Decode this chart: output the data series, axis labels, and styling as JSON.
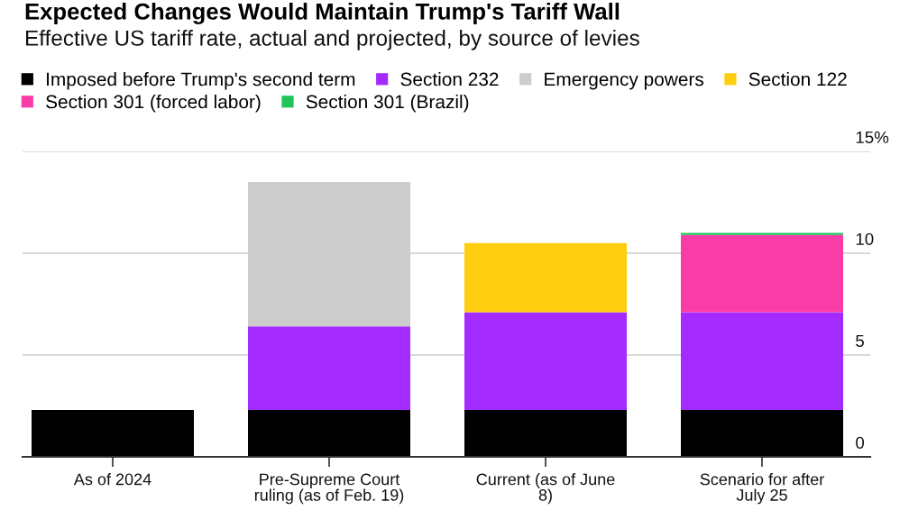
{
  "chart_data": {
    "type": "bar",
    "title": "Expected Changes Would Maintain Trump's Tariff Wall",
    "subtitle": "Effective US tariff rate, actual and projected, by source of levies",
    "categories": [
      "As of 2024",
      "Pre-Supreme Court\nruling (as of Feb. 19)",
      "Current (as of June\n8)",
      "Scenario for after\nJuly 25"
    ],
    "series": [
      {
        "name": "Imposed before Trump's second term",
        "color": "#000000",
        "values": [
          2.3,
          2.3,
          2.3,
          2.3
        ]
      },
      {
        "name": "Section 232",
        "color": "#a32bff",
        "values": [
          null,
          4.1,
          4.8,
          4.8
        ]
      },
      {
        "name": "Emergency powers",
        "color": "#cccccc",
        "values": [
          null,
          7.1,
          null,
          null
        ]
      },
      {
        "name": "Section 122",
        "color": "#ffcf0f",
        "values": [
          null,
          null,
          3.4,
          null
        ]
      },
      {
        "name": "Section 301 (forced labor)",
        "color": "#fa3ca8",
        "values": [
          null,
          null,
          null,
          3.8
        ]
      },
      {
        "name": "Section 301 (Brazil)",
        "color": "#1fc45a",
        "values": [
          null,
          null,
          null,
          0.1
        ]
      }
    ],
    "stacked": true,
    "ylim": [
      0,
      15
    ],
    "yticks": [
      0,
      5,
      10,
      {
        "value": 15,
        "label": "15%"
      }
    ],
    "grid": "y",
    "legend": "top left"
  }
}
